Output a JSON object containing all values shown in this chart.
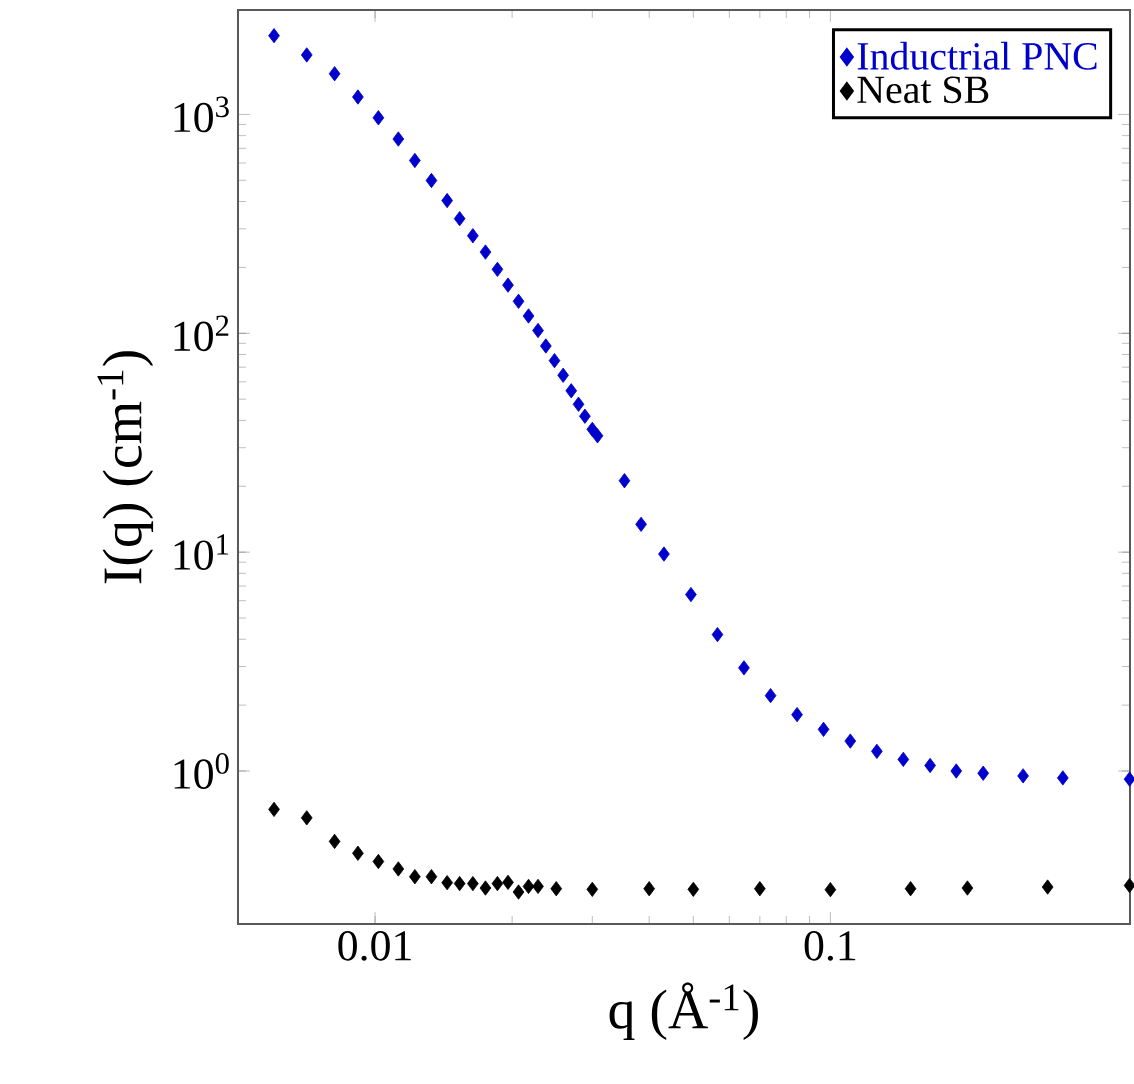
{
  "chart_data": {
    "type": "scatter",
    "xlabel": "q (Å$^{-1}$)",
    "ylabel": "I(q) (cm$^{-1}$)",
    "log": "xy",
    "xlim": [
      0.005,
      0.455
    ],
    "ylim": [
      0.2,
      3000
    ],
    "xticks": [
      0.01,
      0.1
    ],
    "yticks": [
      {
        "value": 1,
        "label": "10$^{0}$"
      },
      {
        "value": 10,
        "label": "10$^{1}$"
      },
      {
        "value": 100,
        "label": "10$^{2}$"
      },
      {
        "value": 1000,
        "label": "10$^{3}$"
      }
    ],
    "legend": "top right",
    "marker": "diamond",
    "grid": false,
    "series": [
      {
        "name": "Inductrial PNC",
        "color": "#0000cc",
        "x": [
          0.006,
          0.00708,
          0.00815,
          0.00917,
          0.01017,
          0.01125,
          0.01223,
          0.0133,
          0.0144,
          0.01534,
          0.0164,
          0.01748,
          0.01857,
          0.01959,
          0.02066,
          0.02173,
          0.0228,
          0.02372,
          0.02478,
          0.02589,
          0.02697,
          0.02798,
          0.0289,
          0.03,
          0.0308,
          0.0353,
          0.0384,
          0.0431,
          0.0494,
          0.0565,
          0.0646,
          0.0739,
          0.0845,
          0.0966,
          0.1106,
          0.1265,
          0.1446,
          0.1656,
          0.189,
          0.2166,
          0.265,
          0.324,
          0.454
        ],
        "values": [
          2290,
          1870,
          1534,
          1201,
          965,
          772,
          616,
          499,
          404,
          334,
          279,
          235,
          196,
          166,
          140,
          120,
          103,
          87.5,
          75,
          64.3,
          54.6,
          47.4,
          41.8,
          36.4,
          34,
          21.2,
          13.4,
          9.8,
          6.4,
          4.2,
          2.96,
          2.21,
          1.81,
          1.55,
          1.37,
          1.23,
          1.13,
          1.06,
          1.0,
          0.977,
          0.95,
          0.93,
          0.918
        ]
      },
      {
        "name": "Neat SB",
        "color": "#000000",
        "x": [
          0.006,
          0.00708,
          0.00815,
          0.00917,
          0.01017,
          0.01125,
          0.01223,
          0.0133,
          0.0144,
          0.01534,
          0.0164,
          0.01748,
          0.01857,
          0.01959,
          0.02066,
          0.02173,
          0.0228,
          0.025,
          0.03,
          0.04,
          0.05,
          0.07,
          0.1,
          0.15,
          0.2,
          0.3,
          0.454
        ],
        "values": [
          0.668,
          0.611,
          0.477,
          0.421,
          0.386,
          0.357,
          0.329,
          0.329,
          0.309,
          0.306,
          0.306,
          0.292,
          0.306,
          0.31,
          0.28,
          0.297,
          0.297,
          0.29,
          0.288,
          0.29,
          0.288,
          0.29,
          0.287,
          0.29,
          0.292,
          0.295,
          0.3
        ]
      }
    ]
  }
}
